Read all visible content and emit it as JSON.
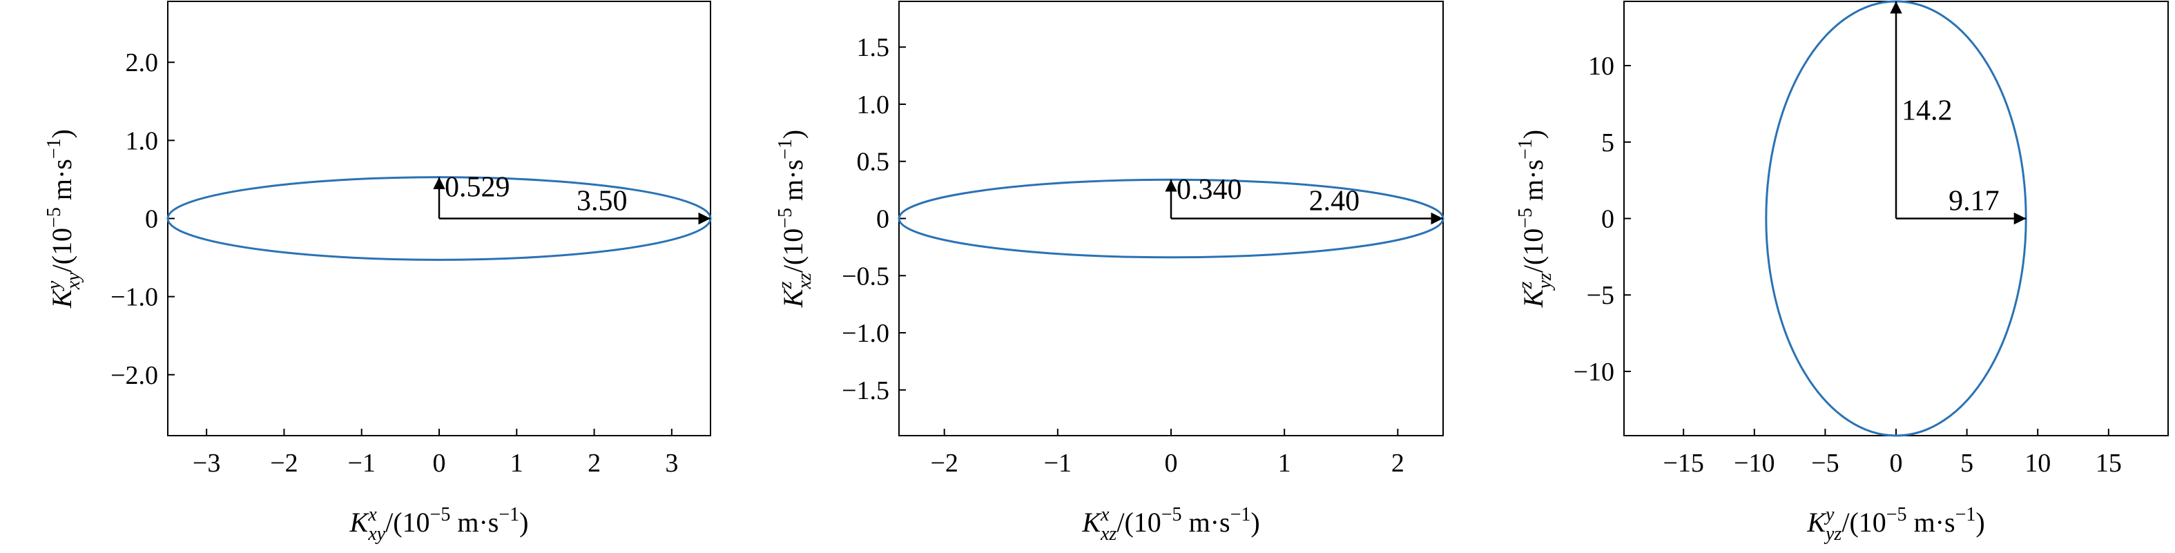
{
  "chart_data": [
    {
      "type": "ellipse",
      "color": "#2a72b5",
      "values": [
        3.5,
        0.529
      ],
      "value_labels": [
        "3.50",
        "0.529"
      ],
      "xlim": [
        -3.5,
        3.5
      ],
      "ylim": [
        -2.78,
        2.78
      ],
      "xticks": [
        {
          "value": -3,
          "label": "−3"
        },
        {
          "value": -2,
          "label": "−2"
        },
        {
          "value": -1,
          "label": "−1"
        },
        0,
        1,
        2,
        3
      ],
      "yticks": [
        {
          "value": -2,
          "label": "−2.0"
        },
        {
          "value": -1,
          "label": "−1.0"
        },
        0,
        {
          "value": 1,
          "label": "1.0"
        },
        {
          "value": 2,
          "label": "2.0"
        }
      ],
      "xlabel": {
        "symbol": "K",
        "sup": "x",
        "sub": "xy",
        "unit": "/(10",
        "unit_exp": "−5",
        "unit_base": " m·s",
        "unit_exp2": "−1",
        "close": ")"
      },
      "ylabel": {
        "symbol": "K",
        "sup": "y",
        "sub": "xy",
        "unit": "/(10",
        "unit_exp": "−5",
        "unit_base": " m·s",
        "unit_exp2": "−1",
        "close": ")"
      }
    },
    {
      "type": "ellipse",
      "color": "#2a72b5",
      "values": [
        2.4,
        0.34
      ],
      "value_labels": [
        "2.40",
        "0.340"
      ],
      "xlim": [
        -2.4,
        2.4
      ],
      "ylim": [
        -1.9,
        1.9
      ],
      "xticks": [
        {
          "value": -2,
          "label": "−2"
        },
        {
          "value": -1,
          "label": "−1"
        },
        0,
        1,
        2
      ],
      "yticks": [
        {
          "value": -1.5,
          "label": "−1.5"
        },
        {
          "value": -1,
          "label": "−1.0"
        },
        {
          "value": -0.5,
          "label": "−0.5"
        },
        0,
        0.5,
        {
          "value": 1,
          "label": "1.0"
        },
        1.5
      ],
      "xlabel": {
        "symbol": "K",
        "sup": "x",
        "sub": "xz",
        "unit": "/(10",
        "unit_exp": "−5",
        "unit_base": " m·s",
        "unit_exp2": "−1",
        "close": ")"
      },
      "ylabel": {
        "symbol": "K",
        "sup": "z",
        "sub": "xz",
        "unit": "/(10",
        "unit_exp": "−5",
        "unit_base": " m·s",
        "unit_exp2": "−1",
        "close": ")"
      }
    },
    {
      "type": "ellipse",
      "color": "#2a72b5",
      "values": [
        9.17,
        14.2
      ],
      "value_labels": [
        "9.17",
        "14.2"
      ],
      "xlim": [
        -19.2,
        19.2
      ],
      "ylim": [
        -14.2,
        14.2
      ],
      "xticks": [
        {
          "value": -15,
          "label": "−15"
        },
        {
          "value": -10,
          "label": "−10"
        },
        {
          "value": -5,
          "label": "−5"
        },
        0,
        5,
        10,
        15
      ],
      "yticks": [
        {
          "value": -10,
          "label": "−10"
        },
        {
          "value": -5,
          "label": "−5"
        },
        0,
        5,
        10
      ],
      "xlabel": {
        "symbol": "K",
        "sup": "y",
        "sub": "yz",
        "unit": "/(10",
        "unit_exp": "−5",
        "unit_base": " m·s",
        "unit_exp2": "−1",
        "close": ")"
      },
      "ylabel": {
        "symbol": "K",
        "sup": "z",
        "sub": "yz",
        "unit": "/(10",
        "unit_exp": "−5",
        "unit_base": " m·s",
        "unit_exp2": "−1",
        "close": ")"
      }
    }
  ]
}
